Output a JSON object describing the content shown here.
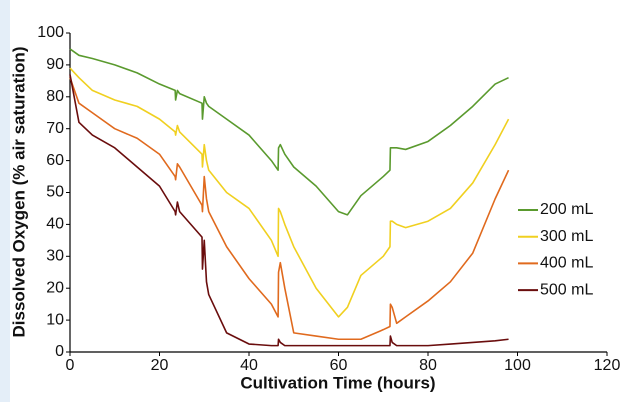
{
  "chart_data": {
    "type": "line",
    "xlabel": "Cultivation Time (hours)",
    "ylabel": "Dissolved Oxygen (% air saturation)",
    "x": [
      0,
      2,
      5,
      10,
      15,
      20,
      23.5,
      23.6,
      24,
      24.5,
      29.5,
      29.6,
      30,
      30.5,
      31,
      35,
      40,
      45,
      46.5,
      46.6,
      47,
      48,
      50,
      55,
      60,
      62,
      65,
      70,
      71.5,
      71.6,
      72,
      73,
      75,
      80,
      85,
      90,
      95,
      98
    ],
    "series": [
      {
        "name": "200 mL",
        "color": "#5a9a2e",
        "values": [
          95,
          93,
          92,
          90,
          87.5,
          84,
          82,
          79,
          82,
          81,
          78,
          73,
          80,
          78,
          77,
          73,
          68,
          60,
          57,
          64,
          65,
          62,
          58,
          52,
          44,
          43,
          49,
          55,
          57,
          64,
          64,
          64,
          63.5,
          66,
          71,
          77,
          84,
          86
        ]
      },
      {
        "name": "300 mL",
        "color": "#f0d020",
        "values": [
          89,
          86,
          82,
          79,
          77,
          73,
          69,
          68,
          71,
          69,
          62,
          58,
          65,
          60,
          57,
          50,
          45,
          35,
          30,
          45,
          44,
          40,
          33,
          20,
          11,
          14,
          24,
          30,
          33,
          41,
          41,
          40,
          39,
          41,
          45,
          53,
          65,
          73
        ]
      },
      {
        "name": "400 mL",
        "color": "#e06a1e",
        "values": [
          86,
          78,
          75,
          70,
          67,
          62,
          55,
          54,
          59,
          58,
          46,
          44,
          55,
          48,
          44,
          33,
          23,
          15,
          11,
          25,
          28,
          20,
          6,
          5,
          4,
          4,
          4,
          7,
          8,
          15,
          14,
          9,
          11,
          16,
          22,
          31,
          48,
          57
        ]
      },
      {
        "name": "500 mL",
        "color": "#6a0d0d",
        "values": [
          87,
          72,
          68,
          64,
          58,
          52,
          44,
          43,
          47,
          44,
          36,
          26,
          35,
          22,
          18,
          6,
          2.5,
          2,
          2,
          4,
          3,
          2,
          2,
          2,
          2,
          2,
          2,
          2,
          2,
          5,
          3,
          2,
          2,
          2,
          2.5,
          3,
          3.5,
          4
        ]
      }
    ],
    "xlim": [
      0,
      120
    ],
    "xticks": [
      0,
      20,
      40,
      60,
      80,
      100,
      120
    ],
    "ylim": [
      0,
      100
    ],
    "yticks": [
      0,
      10,
      20,
      30,
      40,
      50,
      60,
      70,
      80,
      90,
      100
    ],
    "grid": false,
    "legend": "right"
  }
}
